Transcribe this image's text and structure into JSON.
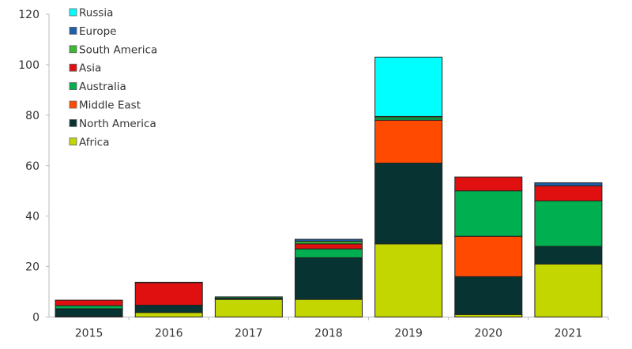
{
  "chart_data": {
    "type": "bar",
    "stacked": true,
    "categories": [
      "2015",
      "2016",
      "2017",
      "2018",
      "2019",
      "2020",
      "2021"
    ],
    "ylim": [
      0,
      120
    ],
    "yticks": [
      0,
      20,
      40,
      60,
      80,
      100,
      120
    ],
    "grid": false,
    "legend_position": "top-left",
    "series": [
      {
        "name": "Africa",
        "color": "#c3d600",
        "values": [
          0.3,
          1.8,
          7,
          7,
          29,
          1,
          21
        ]
      },
      {
        "name": "North America",
        "color": "#073333",
        "values": [
          3,
          2.9,
          0.5,
          16.5,
          32,
          15,
          7
        ]
      },
      {
        "name": "Middle East",
        "color": "#ff4a00",
        "values": [
          0,
          0,
          0,
          0,
          17,
          16,
          0
        ]
      },
      {
        "name": "Australia",
        "color": "#00b050",
        "values": [
          1.2,
          0,
          0.5,
          3.5,
          1,
          18,
          18
        ]
      },
      {
        "name": "Asia",
        "color": "#e01010",
        "values": [
          2.2,
          8.9,
          0,
          2,
          0,
          5.5,
          6
        ]
      },
      {
        "name": "South America",
        "color": "#3cb832",
        "values": [
          0,
          0,
          0,
          1,
          0.5,
          0,
          0
        ]
      },
      {
        "name": "Europe",
        "color": "#1f5fa8",
        "values": [
          0,
          0.2,
          0,
          0.8,
          0,
          0,
          1.2
        ]
      },
      {
        "name": "Russia",
        "color": "#00ffff",
        "values": [
          0,
          0,
          0,
          0,
          23.5,
          0,
          0
        ]
      }
    ]
  }
}
